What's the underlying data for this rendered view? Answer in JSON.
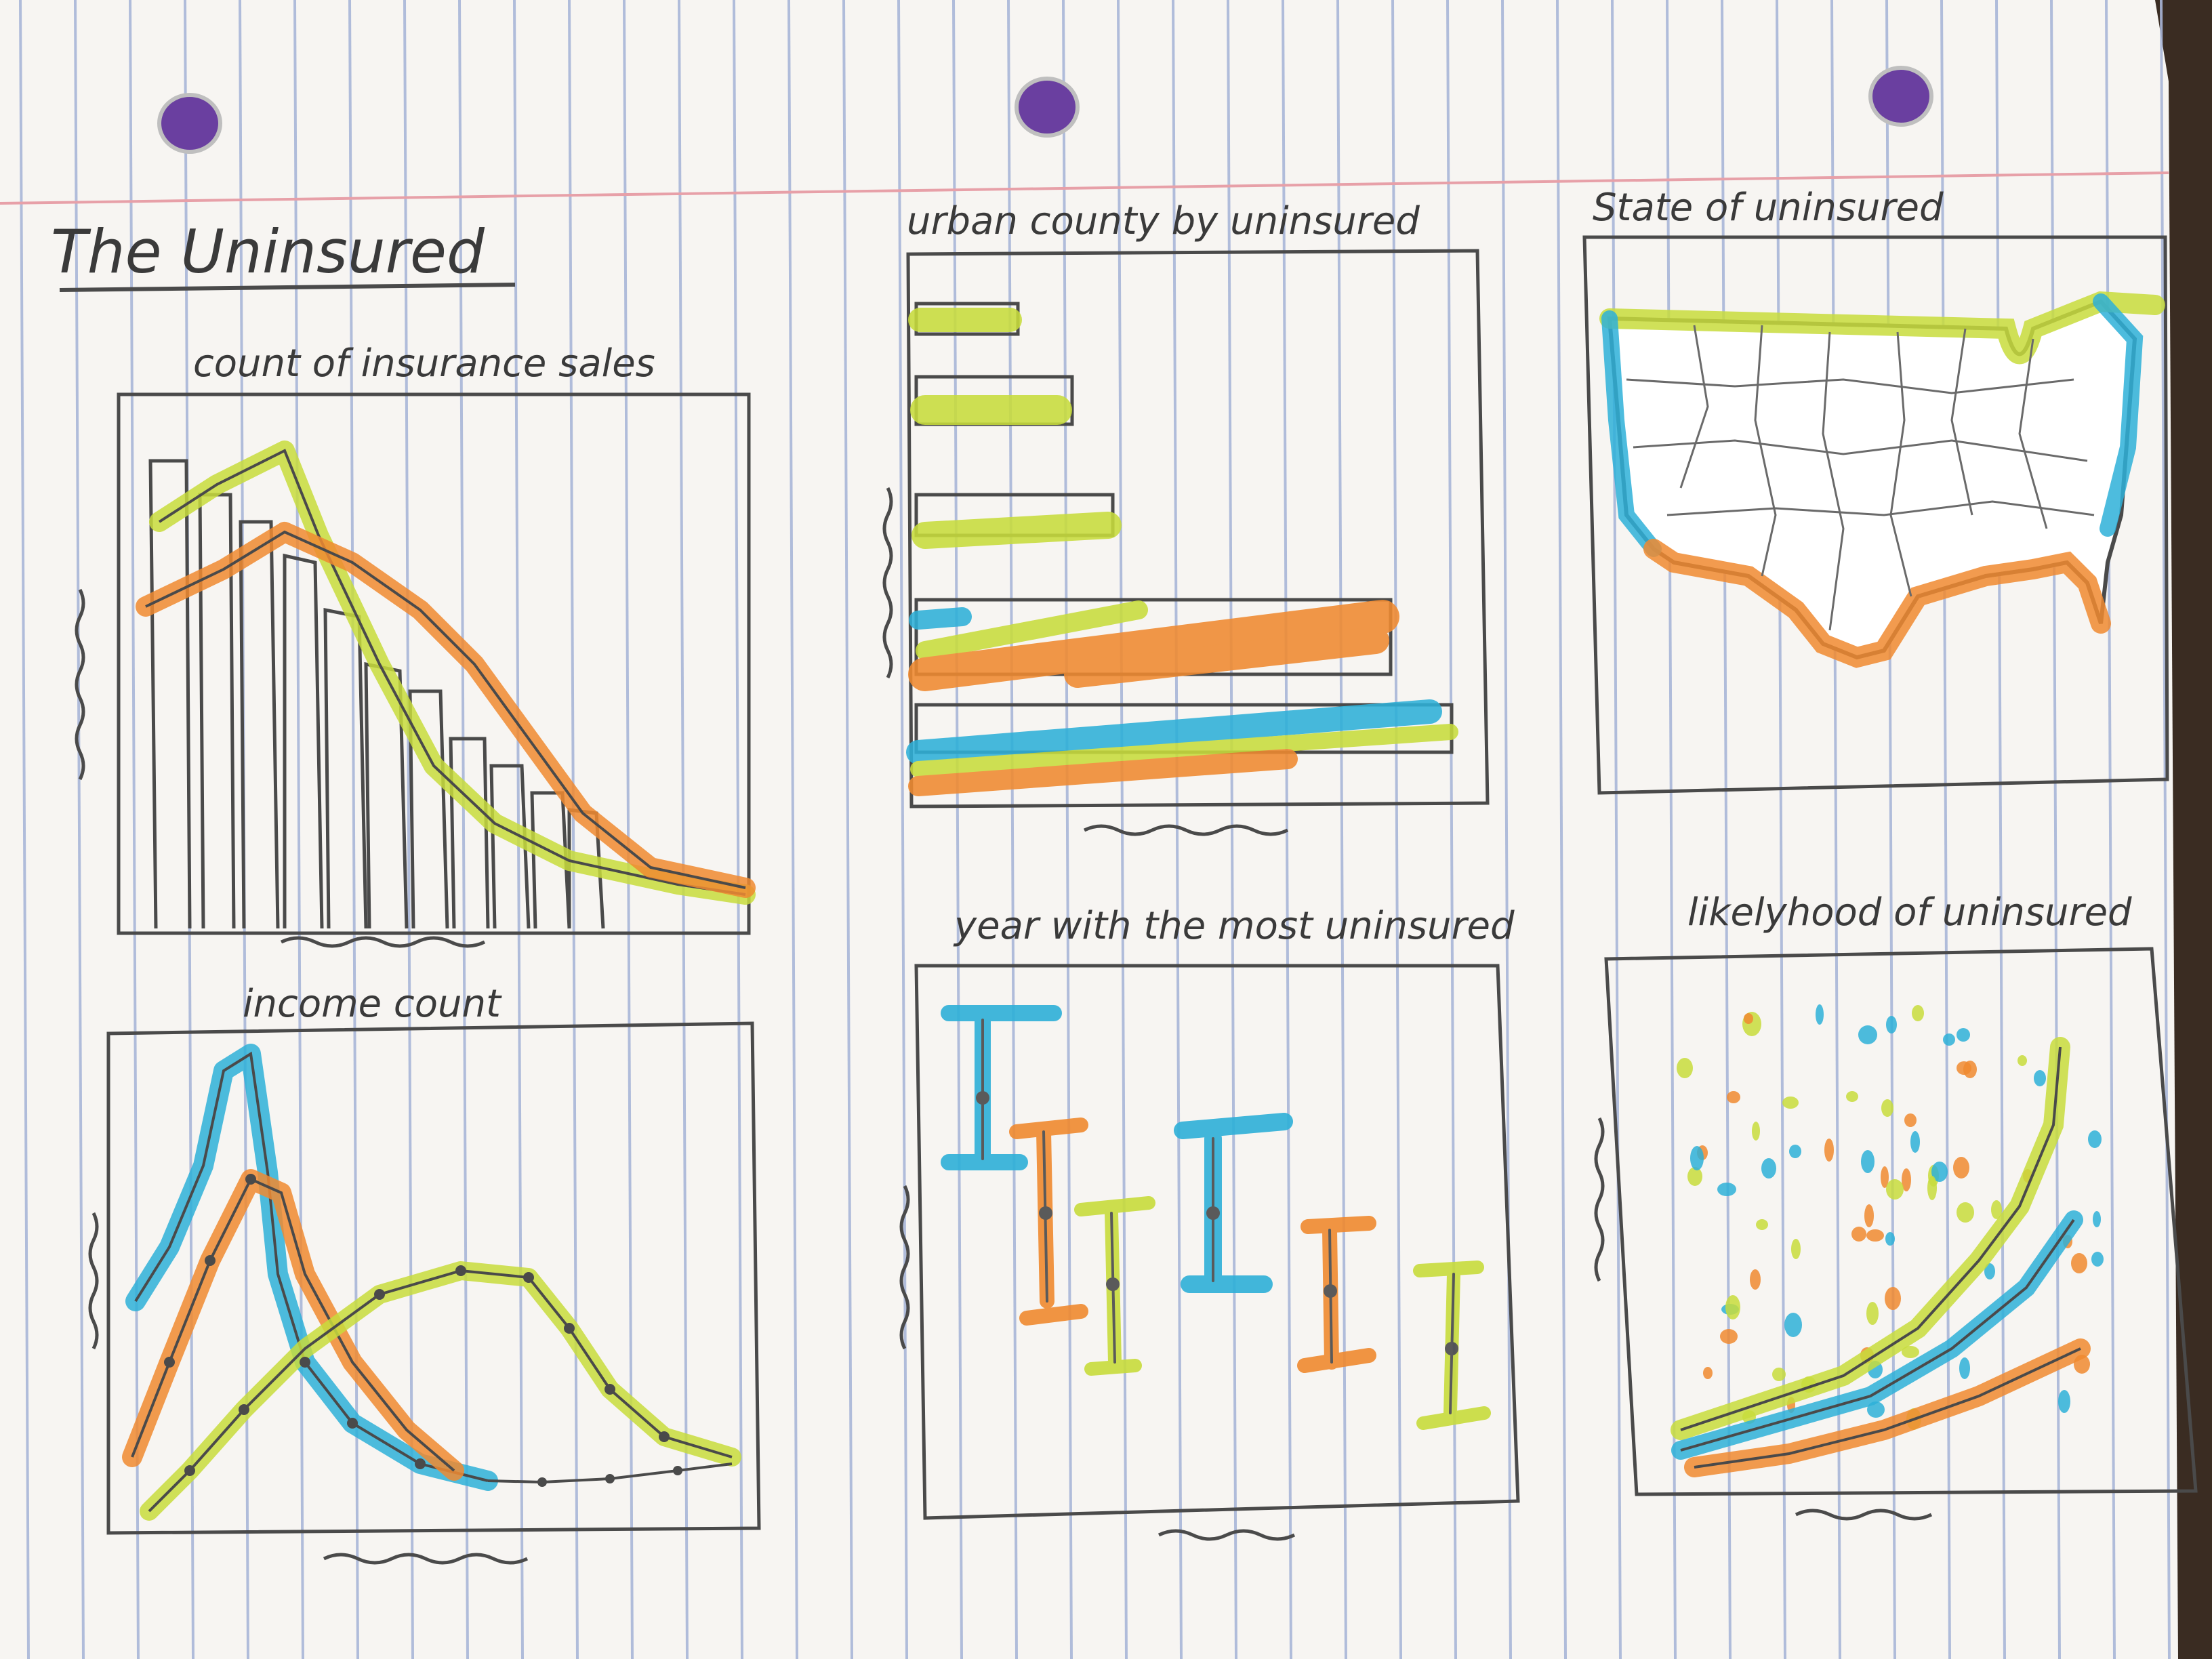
{
  "page": {
    "title": "The Uninsured"
  },
  "panels": {
    "insurance_sales": {
      "title": "count of insurance sales"
    },
    "urban_county": {
      "title": "urban county by uninsured"
    },
    "state": {
      "title": "State of uninsured"
    },
    "income": {
      "title": "income count"
    },
    "year": {
      "title": "year with the most uninsured"
    },
    "likelihood": {
      "title": "likelyhood of uninsured"
    }
  },
  "colors": {
    "paper": "#f7f5f2",
    "rule_line": "#a9b6d8",
    "margin_line": "#e7a0a8",
    "pencil": "#4a4a4a",
    "yellow_green": "#c8dc3c",
    "orange": "#f08a30",
    "blue": "#2eb0d8",
    "hole": "#6a3fa0",
    "table": "#3a2c22"
  }
}
